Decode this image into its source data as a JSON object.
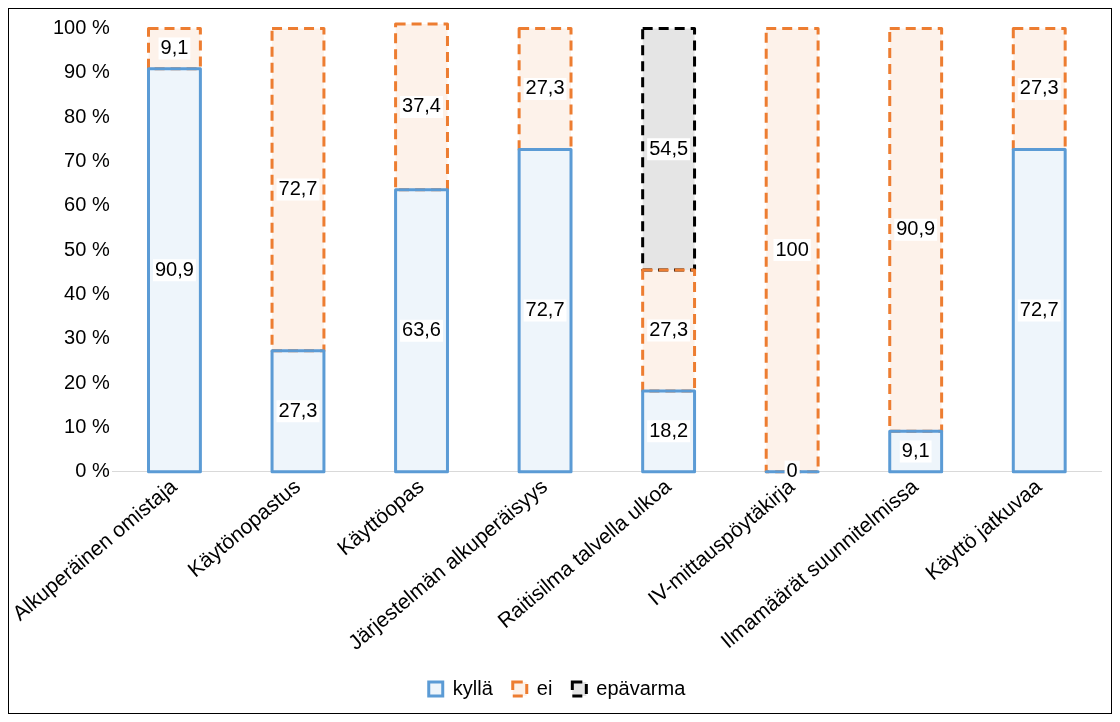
{
  "chart_data": {
    "type": "bar",
    "stacked": true,
    "categories": [
      "Alkuperäinen omistaja",
      "Käytönopastus",
      "Käyttöopas",
      "Järjestelmän alkuperäisyys",
      "Raitisilma talvella ulkoa",
      "IV-mittauspöytäkirja",
      "Ilmamäärät suunnitelmissa",
      "Käyttö jatkuvaa"
    ],
    "series": [
      {
        "name": "kyllä",
        "color": "#5b9bd5",
        "line_style": "solid",
        "values": [
          90.9,
          27.3,
          63.6,
          72.7,
          18.2,
          0,
          9.1,
          72.7
        ],
        "value_labels": [
          "90,9",
          "27,3",
          "63,6",
          "72,7",
          "18,2",
          "0",
          "9,1",
          "72,7"
        ]
      },
      {
        "name": "ei",
        "color": "#ed7d31",
        "line_style": "dashed",
        "values": [
          9.1,
          72.7,
          37.4,
          27.3,
          27.3,
          100,
          90.9,
          27.3
        ],
        "value_labels": [
          "9,1",
          "72,7",
          "37,4",
          "27,3",
          "27,3",
          "100",
          "90,9",
          "27,3"
        ]
      },
      {
        "name": "epävarma",
        "color": "#000000",
        "line_style": "dashed",
        "values": [
          null,
          null,
          null,
          null,
          54.5,
          null,
          null,
          null
        ],
        "value_labels": [
          null,
          null,
          null,
          null,
          "54,5",
          null,
          null,
          null
        ]
      }
    ],
    "ylim": [
      0,
      101
    ],
    "yticks": [
      {
        "value": 0,
        "label": "0 %"
      },
      {
        "value": 10,
        "label": "10 %"
      },
      {
        "value": 20,
        "label": "20 %"
      },
      {
        "value": 30,
        "label": "30 %"
      },
      {
        "value": 40,
        "label": "40 %"
      },
      {
        "value": 50,
        "label": "50 %"
      },
      {
        "value": 60,
        "label": "60 %"
      },
      {
        "value": 70,
        "label": "70 %"
      },
      {
        "value": 80,
        "label": "80 %"
      },
      {
        "value": 90,
        "label": "90 %"
      },
      {
        "value": 100,
        "label": "100 %"
      }
    ],
    "grid": false,
    "legend": "bottom"
  }
}
